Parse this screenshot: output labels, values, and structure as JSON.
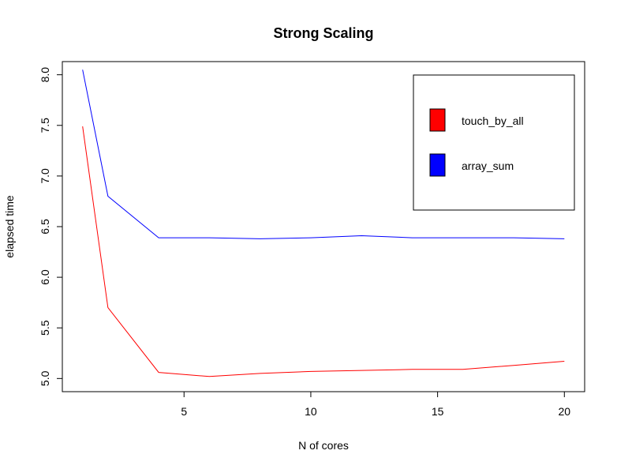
{
  "chart_data": {
    "type": "line",
    "title": "Strong Scaling",
    "xlabel": "N of cores",
    "ylabel": "elapsed time",
    "xlim": [
      0.2,
      20.8
    ],
    "ylim": [
      4.87,
      8.13
    ],
    "x_ticks": [
      5,
      10,
      15,
      20
    ],
    "y_ticks": [
      5.0,
      5.5,
      6.0,
      6.5,
      7.0,
      7.5,
      8.0
    ],
    "x_tick_labels": [
      "5",
      "10",
      "15",
      "20"
    ],
    "y_tick_labels": [
      "5.0",
      "5.5",
      "6.0",
      "6.5",
      "7.0",
      "7.5",
      "8.0"
    ],
    "grid": false,
    "legend_position": "top-right",
    "series": [
      {
        "name": "touch_by_all",
        "color": "#ff0000",
        "x": [
          1,
          2,
          4,
          6,
          8,
          10,
          12,
          14,
          16,
          18,
          20
        ],
        "y": [
          7.49,
          5.7,
          5.06,
          5.02,
          5.05,
          5.07,
          5.08,
          5.09,
          5.09,
          5.13,
          5.17
        ]
      },
      {
        "name": "array_sum",
        "color": "#0000ff",
        "x": [
          1,
          2,
          4,
          6,
          8,
          10,
          12,
          14,
          16,
          18,
          20
        ],
        "y": [
          8.05,
          6.8,
          6.39,
          6.39,
          6.38,
          6.39,
          6.41,
          6.39,
          6.39,
          6.39,
          6.38
        ]
      }
    ]
  }
}
